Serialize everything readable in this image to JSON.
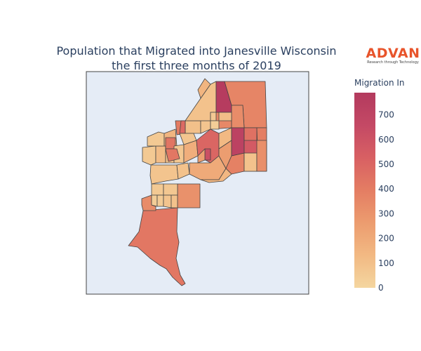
{
  "title": {
    "line1": "Population that Migrated into Janesville Wisconsin",
    "line2": "the first three months of 2019"
  },
  "logo": {
    "name": "ADVAN",
    "tagline": "Research through Technology"
  },
  "colorbar": {
    "title": "Migration In",
    "ticks": [
      "0",
      "100",
      "200",
      "300",
      "400",
      "500",
      "600",
      "700"
    ],
    "min": 0,
    "max": 790,
    "colors": [
      "#f4d6a0",
      "#f2b983",
      "#ec9c6f",
      "#e47d63",
      "#d86063",
      "#c44965",
      "#b33a5e"
    ]
  },
  "chart_data": {
    "type": "choropleth",
    "title": "Population that Migrated into Janesville Wisconsin the first three months of 2019",
    "legend_title": "Migration In",
    "range": [
      0,
      790
    ],
    "regions": [
      {
        "id": "south-large",
        "value": 420
      },
      {
        "id": "south-mid-left",
        "value": 330
      },
      {
        "id": "south-mid-right",
        "value": 310
      },
      {
        "id": "sw-small-a",
        "value": 60
      },
      {
        "id": "sw-small-b",
        "value": 40
      },
      {
        "id": "sw-small-c",
        "value": 50
      },
      {
        "id": "sw-small-d",
        "value": 70
      },
      {
        "id": "sw-small-e",
        "value": 80
      },
      {
        "id": "sw-small-f",
        "value": 90
      },
      {
        "id": "west-a",
        "value": 80
      },
      {
        "id": "west-b",
        "value": 60
      },
      {
        "id": "west-c",
        "value": 120
      },
      {
        "id": "west-d",
        "value": 100
      },
      {
        "id": "west-e",
        "value": 60
      },
      {
        "id": "west-f",
        "value": 150
      },
      {
        "id": "west-g",
        "value": 430
      },
      {
        "id": "west-h",
        "value": 70
      },
      {
        "id": "west-i",
        "value": 90
      },
      {
        "id": "west-j",
        "value": 180
      },
      {
        "id": "center-a",
        "value": 400
      },
      {
        "id": "center-b",
        "value": 100
      },
      {
        "id": "center-c",
        "value": 80
      },
      {
        "id": "center-d",
        "value": 350
      },
      {
        "id": "center-e",
        "value": 500
      },
      {
        "id": "center-f",
        "value": 620
      },
      {
        "id": "center-g",
        "value": 200
      },
      {
        "id": "center-h",
        "value": 130
      },
      {
        "id": "center-i",
        "value": 260
      },
      {
        "id": "center-j",
        "value": 380
      },
      {
        "id": "north-a",
        "value": 90
      },
      {
        "id": "north-b",
        "value": 150
      },
      {
        "id": "north-c",
        "value": 770
      },
      {
        "id": "north-d",
        "value": 360
      },
      {
        "id": "north-e",
        "value": 330
      },
      {
        "id": "north-f",
        "value": 480
      },
      {
        "id": "north-g",
        "value": 60
      },
      {
        "id": "north-h",
        "value": 110
      },
      {
        "id": "north-i",
        "value": 40
      },
      {
        "id": "east-a",
        "value": 720
      },
      {
        "id": "east-b",
        "value": 560
      },
      {
        "id": "east-c",
        "value": 390
      },
      {
        "id": "east-d",
        "value": 90
      },
      {
        "id": "east-e",
        "value": 450
      },
      {
        "id": "east-f",
        "value": 320
      },
      {
        "id": "mid-a",
        "value": 140
      },
      {
        "id": "mid-b",
        "value": 420
      },
      {
        "id": "mid-c",
        "value": 250
      },
      {
        "id": "mid-d",
        "value": 75
      }
    ]
  }
}
